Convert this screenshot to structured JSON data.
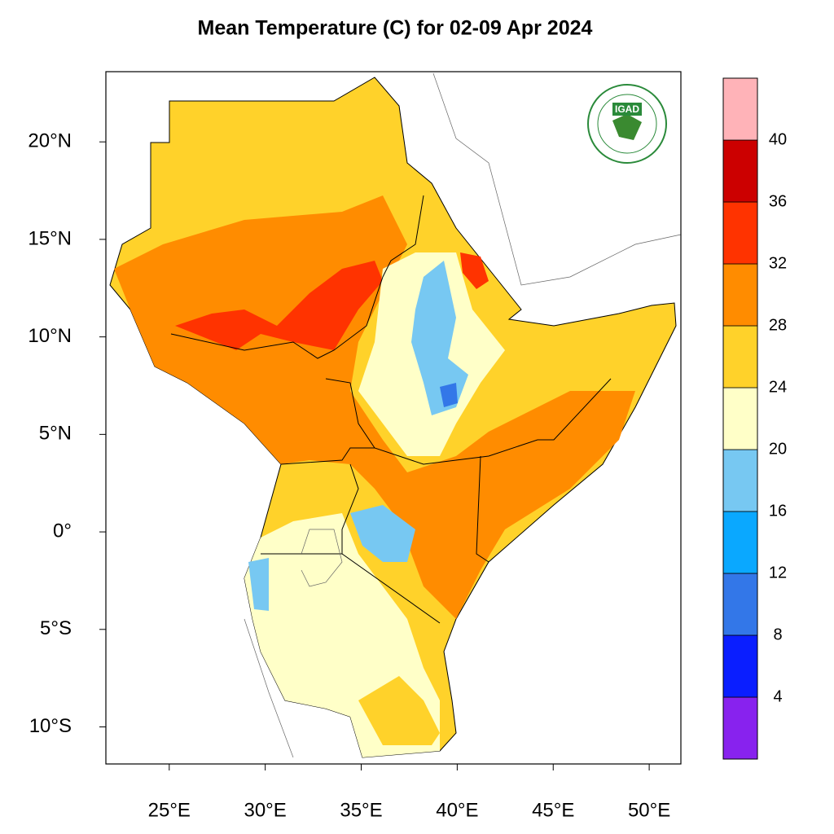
{
  "title": "Mean Temperature (C) for 02-09 Apr 2024",
  "logo": {
    "text": "IGAD"
  },
  "map": {
    "xlim": [
      21.7,
      51.65
    ],
    "ylim": [
      -11.9,
      23.6
    ],
    "xticks": [
      {
        "value": 25,
        "label": "25°E"
      },
      {
        "value": 30,
        "label": "30°E"
      },
      {
        "value": 35,
        "label": "35°E"
      },
      {
        "value": 40,
        "label": "40°E"
      },
      {
        "value": 45,
        "label": "45°E"
      },
      {
        "value": 50,
        "label": "50°E"
      }
    ],
    "yticks": [
      {
        "value": 20,
        "label": "20°N"
      },
      {
        "value": 15,
        "label": "15°N"
      },
      {
        "value": 10,
        "label": "10°N"
      },
      {
        "value": 5,
        "label": "5°N"
      },
      {
        "value": 0,
        "label": "0°"
      },
      {
        "value": -5,
        "label": "5°S"
      },
      {
        "value": -10,
        "label": "10°S"
      }
    ]
  },
  "colorbar": {
    "lim": [
      0,
      44
    ],
    "levels": [
      4,
      8,
      12,
      16,
      20,
      24,
      28,
      32,
      36,
      40
    ],
    "colors": [
      "#8822ee",
      "#0a1eff",
      "#3377e8",
      "#0aa8ff",
      "#77c8f2",
      "#ffffc8",
      "#ffd22a",
      "#ff8c00",
      "#ff3300",
      "#cc0000",
      "#ffb3b8"
    ]
  }
}
